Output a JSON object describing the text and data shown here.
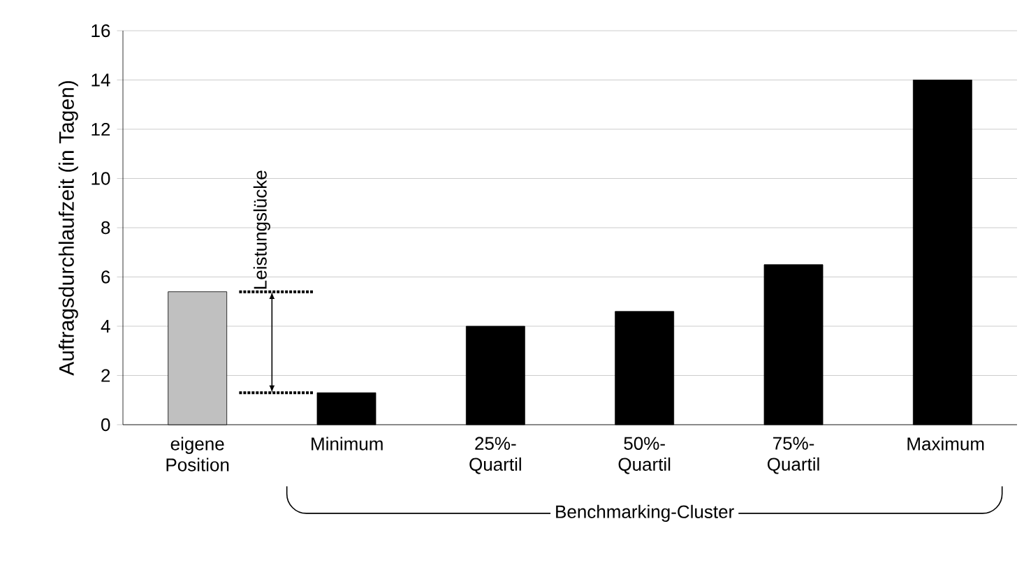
{
  "chart_data": {
    "type": "bar",
    "ylabel": "Auftragsdurchlaufzeit (in Tagen)",
    "categories": [
      "eigene Position",
      "Minimum",
      "25%-Quartil",
      "50%-Quartil",
      "75%-Quartil",
      "Maximum"
    ],
    "values": [
      5.4,
      1.3,
      4.0,
      4.6,
      6.5,
      14.0
    ],
    "colors": [
      "#c0c0c0",
      "#000000",
      "#000000",
      "#000000",
      "#000000",
      "#000000"
    ],
    "ylim": [
      0,
      16
    ],
    "yticks": [
      0,
      2,
      4,
      6,
      8,
      10,
      12,
      14,
      16
    ],
    "grid": "y",
    "annotations": [
      "Leistungslücke",
      "Benchmarking-Cluster"
    ]
  }
}
